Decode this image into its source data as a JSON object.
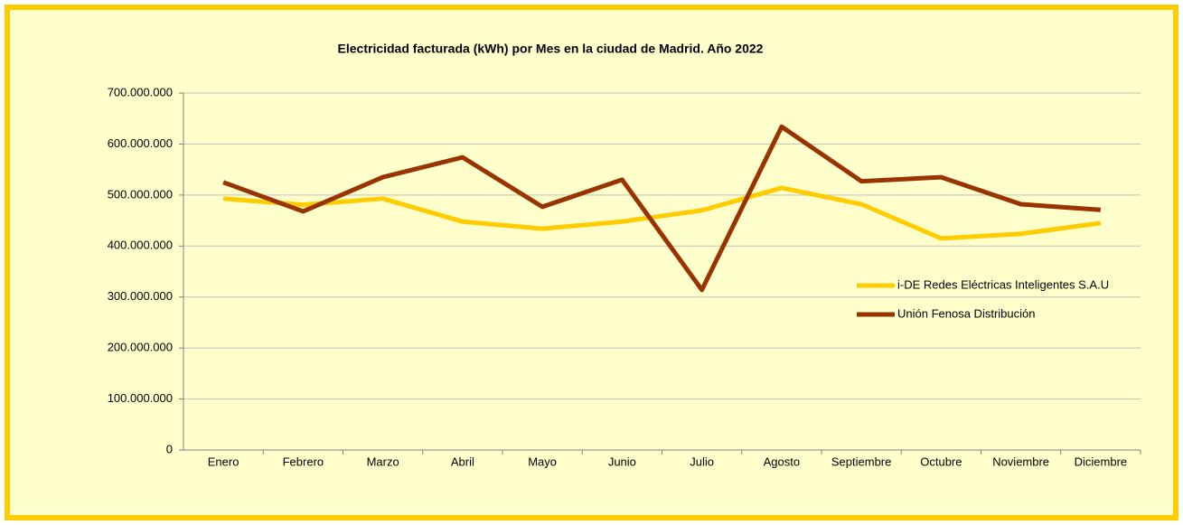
{
  "chart_data": {
    "type": "line",
    "title": "Electricidad facturada (kWh) por Mes en la ciudad de Madrid. Año 2022",
    "categories": [
      "Enero",
      "Febrero",
      "Marzo",
      "Abril",
      "Mayo",
      "Junio",
      "Julio",
      "Agosto",
      "Septiembre",
      "Octubre",
      "Noviembre",
      "Diciembre"
    ],
    "series": [
      {
        "name": "i-DE Redes Eléctricas Inteligentes S.A.U",
        "color": "#ffcc00",
        "values": [
          493000000,
          481000000,
          493000000,
          448000000,
          434000000,
          448000000,
          470000000,
          514000000,
          482000000,
          415000000,
          424000000,
          445000000
        ]
      },
      {
        "name": "Unión Fenosa Distribución",
        "color": "#993300",
        "values": [
          525000000,
          468000000,
          535000000,
          574000000,
          477000000,
          530000000,
          314000000,
          634000000,
          527000000,
          535000000,
          482000000,
          471000000
        ]
      }
    ],
    "ylim": [
      0,
      700000000
    ],
    "yticks": [
      0,
      {
        "value": 100000000,
        "label": "100.000.000"
      },
      {
        "value": 200000000,
        "label": "200.000.000"
      },
      {
        "value": 300000000,
        "label": "300.000.000"
      },
      {
        "value": 400000000,
        "label": "400.000.000"
      },
      {
        "value": 500000000,
        "label": "500.000.000"
      },
      {
        "value": 600000000,
        "label": "600.000.000"
      },
      {
        "value": 700000000,
        "label": "700.000.000"
      }
    ],
    "grid": true,
    "legend": "right"
  }
}
